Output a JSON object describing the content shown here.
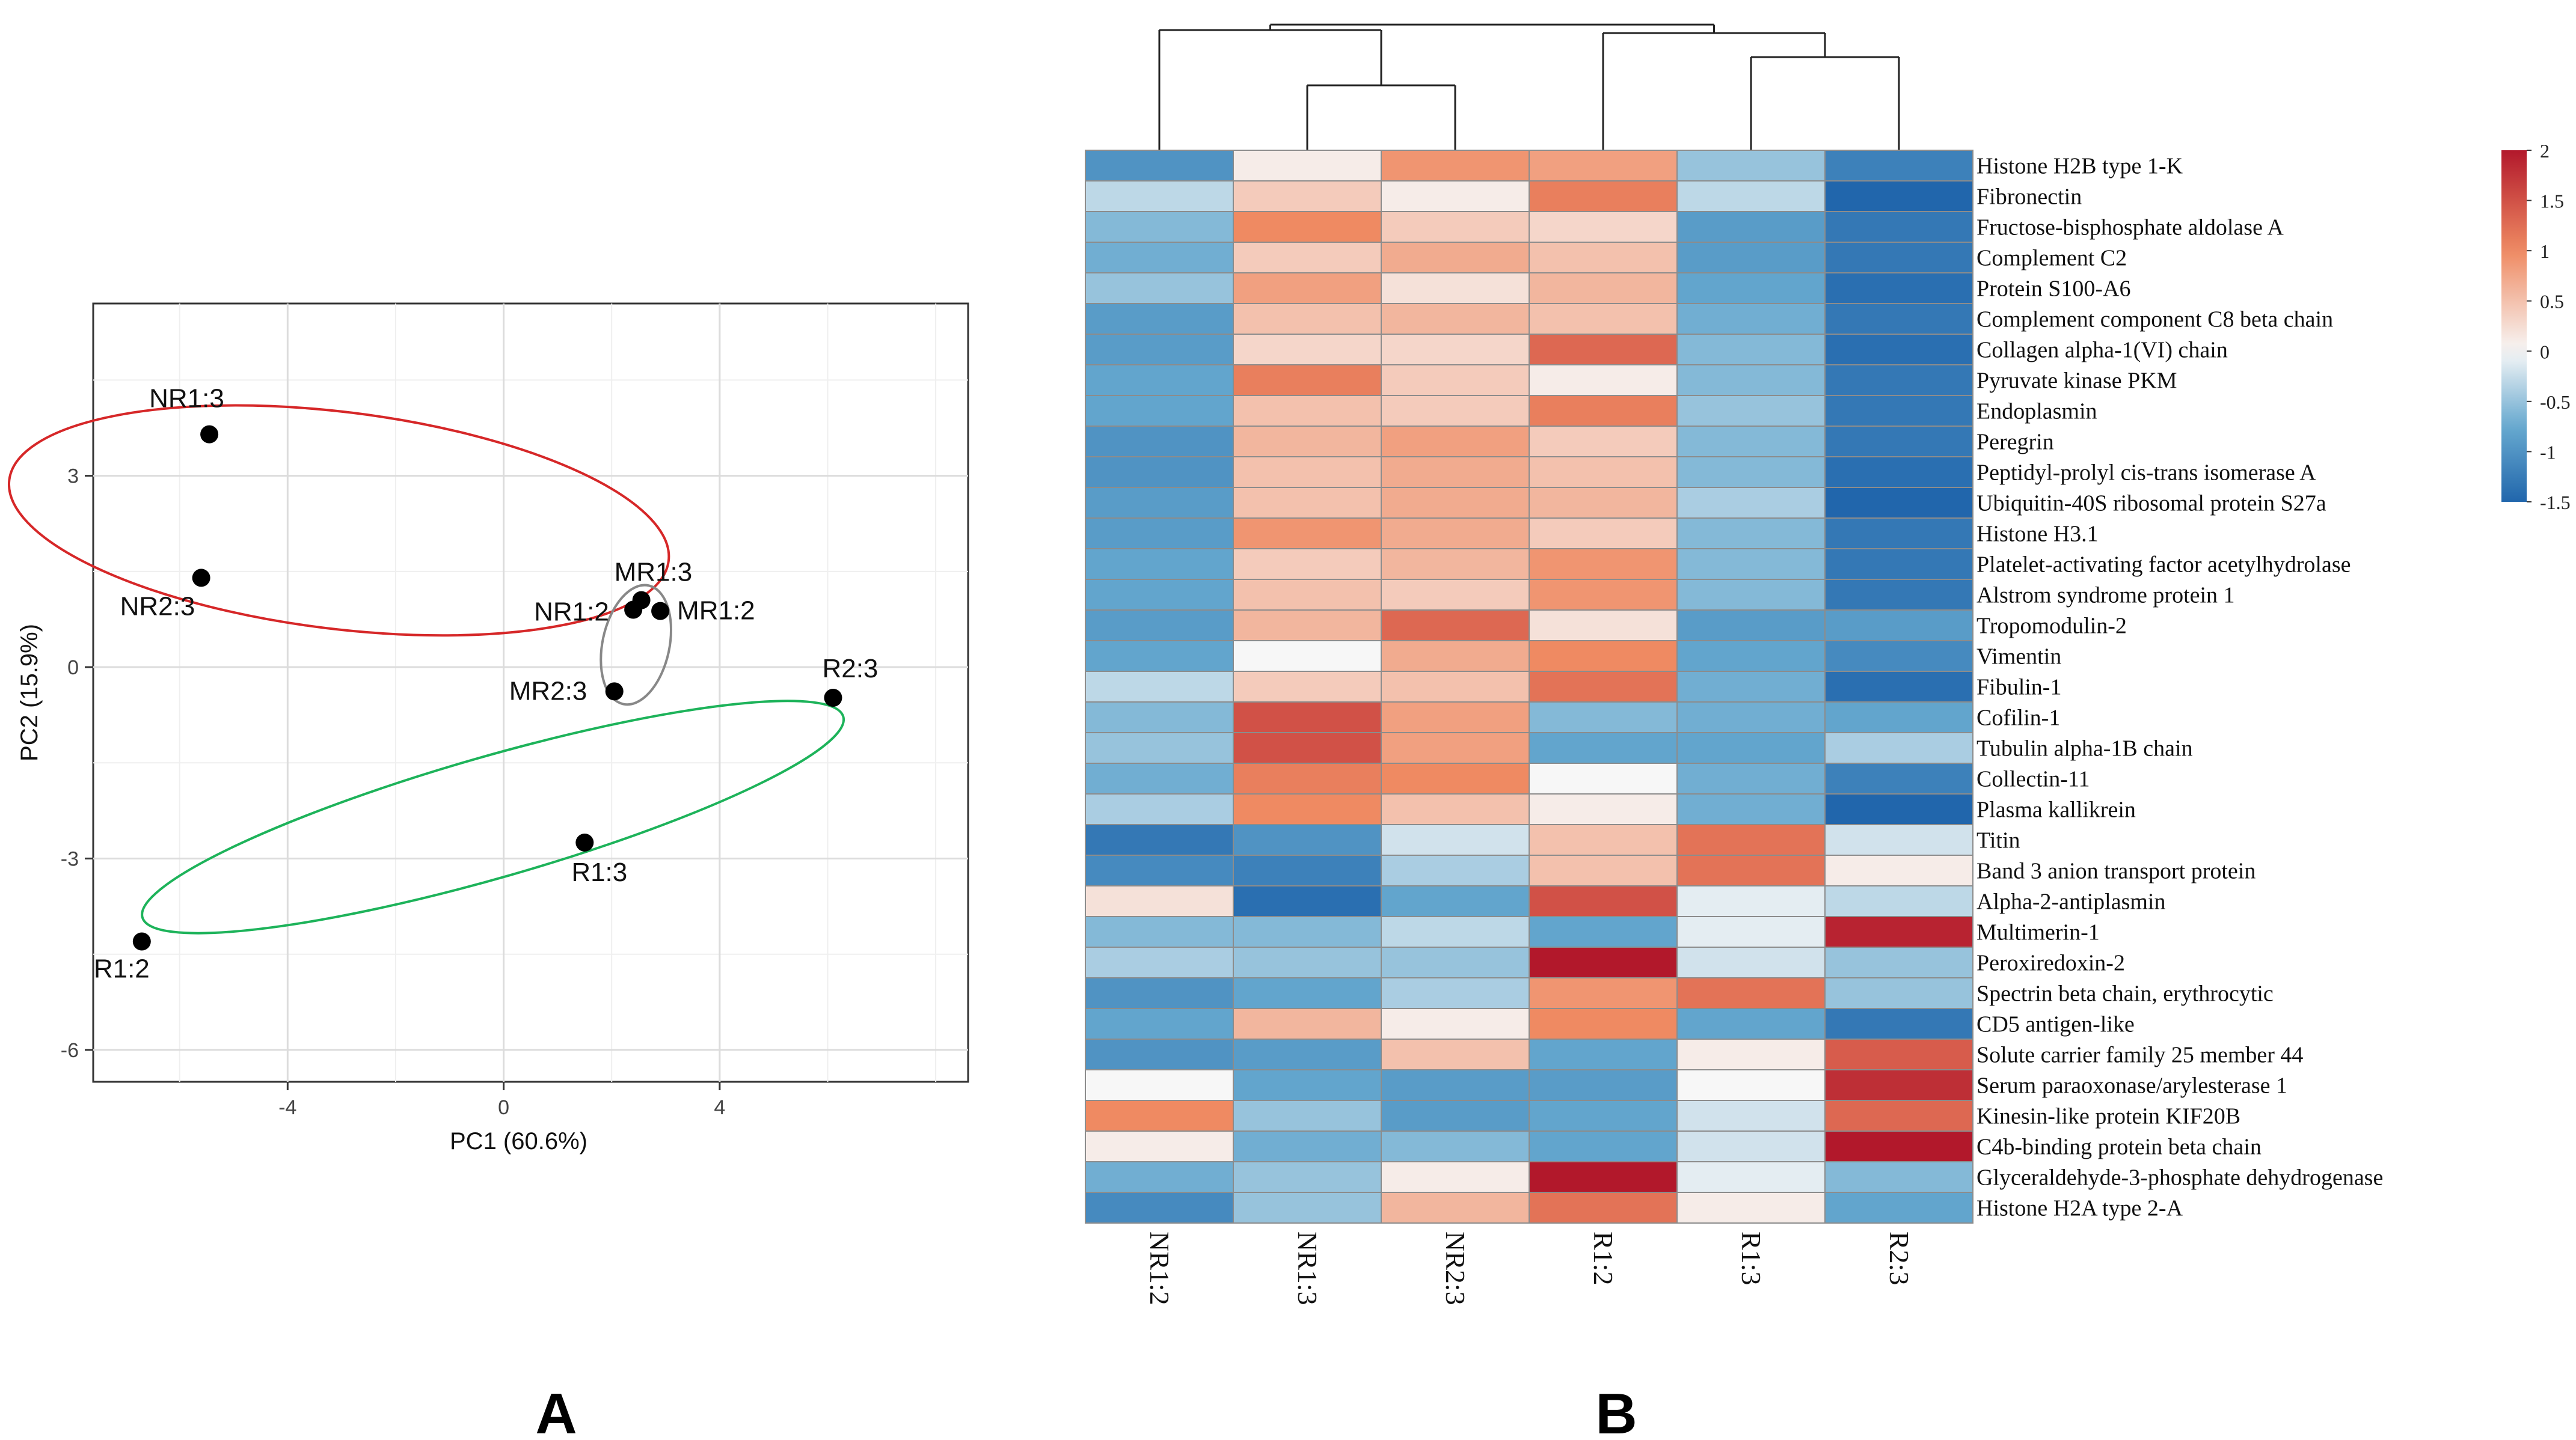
{
  "chart_data": [
    {
      "type": "scatter",
      "panel_label": "A",
      "xlabel": "PC1 (60.6%)",
      "ylabel": "PC2 (15.9%)",
      "xlim": [
        -7.6,
        8.6
      ],
      "ylim": [
        -6.5,
        5.7
      ],
      "xticks": [
        -4,
        0,
        4
      ],
      "yticks": [
        -6,
        -3,
        0,
        3
      ],
      "grid": true,
      "points": [
        {
          "label": "NR1:3",
          "x": -5.45,
          "y": 3.65
        },
        {
          "label": "NR2:3",
          "x": -5.6,
          "y": 1.4
        },
        {
          "label": "MR1:3",
          "x": 2.55,
          "y": 1.05
        },
        {
          "label": "NR1:2",
          "x": 2.4,
          "y": 0.9
        },
        {
          "label": "MR1:2",
          "x": 2.9,
          "y": 0.88
        },
        {
          "label": "MR2:3",
          "x": 2.05,
          "y": -0.38
        },
        {
          "label": "R2:3",
          "x": 6.1,
          "y": -0.48
        },
        {
          "label": "R1:3",
          "x": 1.5,
          "y": -2.75
        },
        {
          "label": "R1:2",
          "x": -6.7,
          "y": -4.3
        }
      ],
      "ellipses": [
        {
          "group": "NR",
          "color": "#d62728",
          "cx": -3.05,
          "cy": 2.3,
          "rx": 6.15,
          "ry": 1.7,
          "angle_deg": -7
        },
        {
          "group": "MR",
          "color": "#888888",
          "cx": 2.45,
          "cy": 0.35,
          "rx": 0.62,
          "ry": 0.95,
          "angle_deg": -12
        },
        {
          "group": "R",
          "color": "#1db35a",
          "cx": -0.2,
          "cy": -2.35,
          "rx": 6.75,
          "ry": 0.95,
          "angle_deg": 16
        }
      ]
    },
    {
      "type": "heatmap",
      "panel_label": "B",
      "columns": [
        "NR1:2",
        "NR1:3",
        "NR2:3",
        "R1:2",
        "R1:3",
        "R2:3"
      ],
      "rows": [
        "Histone H2B type 1-K",
        "Fibronectin",
        "Fructose-bisphosphate aldolase A",
        "Complement C2",
        "Protein S100-A6",
        "Complement component C8 beta chain",
        "Collagen alpha-1(VI) chain",
        "Pyruvate kinase PKM",
        "Endoplasmin",
        "Peregrin",
        "Peptidyl-prolyl cis-trans isomerase A",
        "Ubiquitin-40S ribosomal protein S27a",
        "Histone H3.1",
        "Platelet-activating factor acetylhydrolase",
        "Alstrom syndrome protein 1",
        "Tropomodulin-2",
        "Vimentin",
        "Fibulin-1",
        "Cofilin-1",
        "Tubulin alpha-1B chain",
        "Collectin-11",
        "Plasma kallikrein",
        "Titin",
        "Band 3 anion transport protein",
        "Alpha-2-antiplasmin",
        "Multimerin-1",
        "Peroxiredoxin-2",
        "Spectrin beta chain, erythrocytic",
        "CD5 antigen-like",
        "Solute carrier family 25 member 44",
        "Serum paraoxonase/arylesterase 1",
        "Kinesin-like protein KIF20B",
        "C4b-binding protein beta chain",
        "Glyceraldehyde-3-phosphate dehydrogenase",
        "Histone H2A type 2-A"
      ],
      "values": [
        [
          -1.0,
          0.1,
          0.9,
          0.8,
          -0.5,
          -1.2
        ],
        [
          -0.3,
          0.4,
          0.1,
          1.1,
          -0.3,
          -1.6
        ],
        [
          -0.6,
          1.0,
          0.4,
          0.3,
          -0.9,
          -1.3
        ],
        [
          -0.7,
          0.4,
          0.7,
          0.5,
          -0.9,
          -1.3
        ],
        [
          -0.5,
          0.8,
          0.2,
          0.6,
          -0.8,
          -1.4
        ],
        [
          -0.9,
          0.5,
          0.6,
          0.5,
          -0.7,
          -1.3
        ],
        [
          -0.9,
          0.3,
          0.3,
          1.3,
          -0.6,
          -1.4
        ],
        [
          -0.8,
          1.1,
          0.4,
          0.1,
          -0.6,
          -1.3
        ],
        [
          -0.8,
          0.5,
          0.4,
          1.1,
          -0.5,
          -1.3
        ],
        [
          -1.0,
          0.6,
          0.8,
          0.4,
          -0.6,
          -1.3
        ],
        [
          -1.0,
          0.5,
          0.7,
          0.5,
          -0.6,
          -1.4
        ],
        [
          -0.9,
          0.5,
          0.7,
          0.6,
          -0.4,
          -1.5
        ],
        [
          -0.9,
          0.9,
          0.7,
          0.4,
          -0.6,
          -1.3
        ],
        [
          -0.8,
          0.4,
          0.6,
          0.9,
          -0.6,
          -1.3
        ],
        [
          -0.8,
          0.5,
          0.4,
          0.9,
          -0.6,
          -1.3
        ],
        [
          -0.9,
          0.6,
          1.3,
          0.2,
          -0.9,
          -0.9
        ],
        [
          -0.8,
          0.0,
          0.7,
          1.0,
          -0.8,
          -1.1
        ],
        [
          -0.3,
          0.4,
          0.5,
          1.2,
          -0.7,
          -1.4
        ],
        [
          -0.6,
          1.5,
          0.8,
          -0.6,
          -0.7,
          -0.8
        ],
        [
          -0.5,
          1.5,
          0.8,
          -0.8,
          -0.8,
          -0.4
        ],
        [
          -0.7,
          1.1,
          1.0,
          0.0,
          -0.7,
          -1.2
        ],
        [
          -0.4,
          1.0,
          0.5,
          0.1,
          -0.7,
          -1.5
        ],
        [
          -1.3,
          -1.0,
          -0.2,
          0.5,
          1.2,
          -0.2
        ],
        [
          -1.1,
          -1.2,
          -0.4,
          0.5,
          1.2,
          0.1
        ],
        [
          0.2,
          -1.4,
          -0.8,
          1.5,
          -0.1,
          -0.3
        ],
        [
          -0.6,
          -0.6,
          -0.3,
          -0.8,
          -0.1,
          1.9
        ],
        [
          -0.4,
          -0.5,
          -0.5,
          2.3,
          -0.2,
          -0.5
        ],
        [
          -1.0,
          -0.8,
          -0.4,
          0.9,
          1.2,
          -0.5
        ],
        [
          -0.8,
          0.6,
          0.1,
          1.0,
          -0.8,
          -1.3
        ],
        [
          -1.0,
          -0.9,
          0.5,
          -0.8,
          0.1,
          1.4
        ],
        [
          0.0,
          -0.8,
          -0.9,
          -0.9,
          0.0,
          1.8
        ],
        [
          1.0,
          -0.5,
          -0.9,
          -0.8,
          -0.2,
          1.3
        ],
        [
          0.1,
          -0.7,
          -0.6,
          -0.8,
          -0.2,
          2.0
        ],
        [
          -0.7,
          -0.5,
          0.1,
          2.0,
          -0.1,
          -0.6
        ],
        [
          -1.1,
          -0.5,
          0.6,
          1.2,
          0.1,
          -0.8
        ]
      ],
      "color_scale": {
        "min": -1.5,
        "max": 2,
        "ticks": [
          "2",
          "1.5",
          "1",
          "0.5",
          "0",
          "-0.5",
          "-1",
          "-1.5"
        ],
        "low_color": "#2166ac",
        "mid_color": "#f7f7f7",
        "high_color": "#b2182b"
      },
      "dendrogram": "((NR1:2,(NR1:3,NR2:3)),(R1:2,(R1:3,R2:3)))"
    }
  ]
}
